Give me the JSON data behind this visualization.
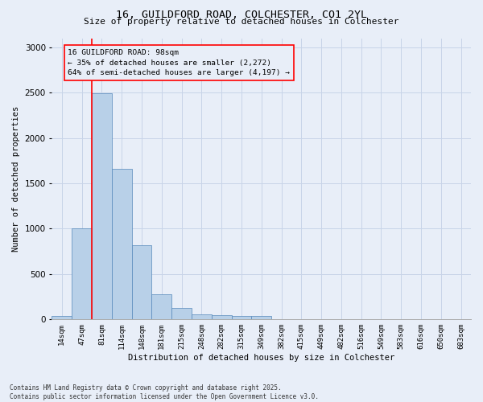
{
  "title_line1": "16, GUILDFORD ROAD, COLCHESTER, CO1 2YL",
  "title_line2": "Size of property relative to detached houses in Colchester",
  "xlabel": "Distribution of detached houses by size in Colchester",
  "ylabel": "Number of detached properties",
  "footnote1": "Contains HM Land Registry data © Crown copyright and database right 2025.",
  "footnote2": "Contains public sector information licensed under the Open Government Licence v3.0.",
  "bar_labels": [
    "14sqm",
    "47sqm",
    "81sqm",
    "114sqm",
    "148sqm",
    "181sqm",
    "215sqm",
    "248sqm",
    "282sqm",
    "315sqm",
    "349sqm",
    "382sqm",
    "415sqm",
    "449sqm",
    "482sqm",
    "516sqm",
    "549sqm",
    "583sqm",
    "616sqm",
    "650sqm",
    "683sqm"
  ],
  "bar_values": [
    40,
    1005,
    2490,
    1660,
    820,
    280,
    130,
    55,
    50,
    40,
    35,
    5,
    0,
    0,
    0,
    0,
    0,
    0,
    0,
    0,
    0
  ],
  "bar_color": "#b8d0e8",
  "bar_edge_color": "#5588bb",
  "vline_color": "red",
  "vline_x_index": 2,
  "annotation_text_line1": "16 GUILDFORD ROAD: 98sqm",
  "annotation_text_line2": "← 35% of detached houses are smaller (2,272)",
  "annotation_text_line3": "64% of semi-detached houses are larger (4,197) →",
  "box_edge_color": "red",
  "ylim": [
    0,
    3100
  ],
  "grid_color": "#c8d4e8",
  "background_color": "#e8eef8",
  "yticks": [
    0,
    500,
    1000,
    1500,
    2000,
    2500,
    3000
  ]
}
